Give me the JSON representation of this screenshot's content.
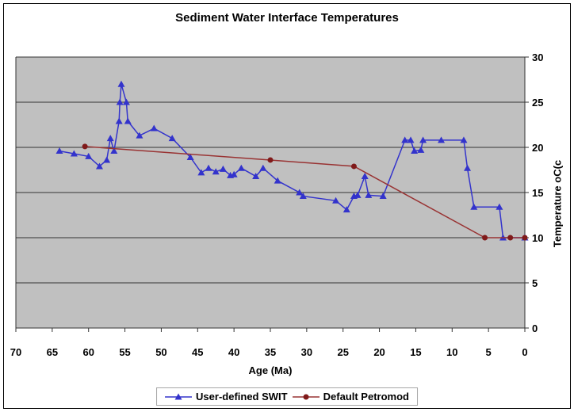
{
  "chart_data": {
    "type": "line",
    "title": "Sediment Water Interface Temperatures",
    "xlabel": "Age (Ma)",
    "ylabel": "Temperature oC(c",
    "x_axis": {
      "min": 0,
      "max": 70,
      "reversed": true,
      "ticks": [
        70,
        65,
        60,
        55,
        50,
        45,
        40,
        35,
        30,
        25,
        20,
        15,
        10,
        5,
        0
      ]
    },
    "y_axis": {
      "min": 0,
      "max": 30,
      "side": "right",
      "ticks": [
        30,
        25,
        20,
        15,
        10,
        5,
        0
      ]
    },
    "grid": "horizontal",
    "colors": {
      "plot_bg": "#c0c0c0",
      "gridline": "#333333",
      "axis_line": "#333333",
      "series1": "#3333cc",
      "series2": "#993333",
      "series2_marker": "#801a1a"
    },
    "legend": {
      "position": "bottom"
    },
    "series": [
      {
        "name": "User-defined SWIT",
        "marker": "triangle",
        "color": "#3333cc",
        "points": [
          [
            64,
            19.6
          ],
          [
            62,
            19.3
          ],
          [
            60,
            19.0
          ],
          [
            58.5,
            17.9
          ],
          [
            57.5,
            18.6
          ],
          [
            57,
            21.0
          ],
          [
            56.5,
            19.6
          ],
          [
            55.8,
            22.9
          ],
          [
            55.7,
            25.0
          ],
          [
            55.5,
            27.0
          ],
          [
            54.8,
            25.0
          ],
          [
            54.6,
            22.9
          ],
          [
            53,
            21.3
          ],
          [
            51,
            22.1
          ],
          [
            48.5,
            21.0
          ],
          [
            46,
            18.9
          ],
          [
            44.5,
            17.2
          ],
          [
            43.5,
            17.7
          ],
          [
            42.5,
            17.3
          ],
          [
            41.5,
            17.6
          ],
          [
            40.5,
            16.9
          ],
          [
            40,
            17.0
          ],
          [
            39,
            17.7
          ],
          [
            37,
            16.8
          ],
          [
            36,
            17.7
          ],
          [
            34,
            16.3
          ],
          [
            31,
            15.0
          ],
          [
            30.5,
            14.6
          ],
          [
            26,
            14.1
          ],
          [
            24.5,
            13.1
          ],
          [
            23.5,
            14.6
          ],
          [
            23,
            14.7
          ],
          [
            22,
            16.8
          ],
          [
            21.5,
            14.7
          ],
          [
            19.5,
            14.6
          ],
          [
            16.5,
            20.8
          ],
          [
            15.7,
            20.8
          ],
          [
            15.2,
            19.6
          ],
          [
            14.3,
            19.7
          ],
          [
            14,
            20.8
          ],
          [
            11.5,
            20.8
          ],
          [
            8.4,
            20.8
          ],
          [
            7.9,
            17.7
          ],
          [
            7,
            13.4
          ],
          [
            3.5,
            13.4
          ],
          [
            3,
            10
          ],
          [
            0,
            10
          ]
        ]
      },
      {
        "name": "Default Petromod",
        "marker": "circle",
        "color": "#993333",
        "points": [
          [
            60.5,
            20.1
          ],
          [
            35,
            18.6
          ],
          [
            23.5,
            17.9
          ],
          [
            5.5,
            10
          ],
          [
            2,
            10
          ],
          [
            0,
            10
          ]
        ]
      }
    ]
  }
}
